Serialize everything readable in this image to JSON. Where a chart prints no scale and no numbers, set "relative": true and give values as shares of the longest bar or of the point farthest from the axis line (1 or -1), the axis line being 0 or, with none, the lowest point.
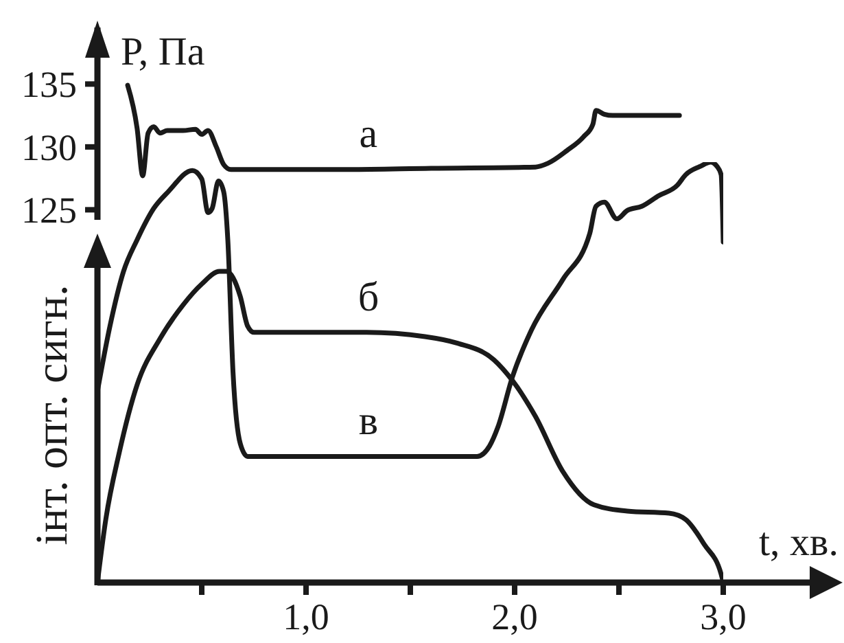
{
  "chart_data": [
    {
      "type": "line",
      "ylabel": "P, Па",
      "xlim": [
        0,
        3
      ],
      "ylim": [
        124.2,
        139.5
      ],
      "yticks": [
        125,
        130,
        135
      ],
      "tick_labels": "y",
      "series": [
        {
          "name": "а",
          "color": "#1a1a1a",
          "x": [
            0.145,
            0.19,
            0.217,
            0.243,
            0.27,
            0.3,
            0.335,
            0.41,
            0.47,
            0.5,
            0.53,
            0.57,
            0.605,
            0.64,
            1.18,
            1.6,
            2.1,
            2.16,
            2.25,
            2.33,
            2.375,
            2.39,
            2.43,
            2.47,
            2.79
          ],
          "values": [
            134.9,
            131.5,
            127.7,
            131.1,
            131.6,
            131.1,
            131.3,
            131.3,
            131.4,
            131.0,
            131.3,
            130.0,
            128.6,
            128.2,
            128.2,
            128.3,
            128.4,
            128.7,
            129.7,
            130.8,
            131.8,
            132.9,
            132.6,
            132.5,
            132.5
          ]
        }
      ]
    },
    {
      "type": "line",
      "xlabel": "t, хв.",
      "ylabel": "інт. опт. сигн.",
      "relative": true,
      "xlim": [
        0,
        3
      ],
      "xticks": [
        {
          "value": 0.5,
          "label": null
        },
        {
          "value": 1,
          "label": "1,0"
        },
        {
          "value": 1.5,
          "label": null
        },
        {
          "value": 2,
          "label": "2,0"
        },
        {
          "value": 2.5,
          "label": null
        },
        {
          "value": 3,
          "label": "3,0"
        }
      ],
      "series": [
        {
          "name": "б",
          "color": "#1a1a1a",
          "x": [
            0,
            0.04,
            0.105,
            0.19,
            0.3,
            0.41,
            0.5,
            0.585,
            0.62,
            0.65,
            0.685,
            0.72,
            0.75,
            0.85,
            1.29,
            1.57,
            1.72,
            1.9,
            1.99,
            2.1,
            2.23,
            2.38,
            2.54,
            2.74,
            2.82,
            2.91,
            2.99,
            3.0
          ],
          "values": [
            0,
            0.15,
            0.31,
            0.47,
            0.58,
            0.66,
            0.71,
            0.74,
            0.74,
            0.725,
            0.68,
            0.61,
            0.595,
            0.595,
            0.595,
            0.585,
            0.57,
            0.53,
            0.48,
            0.395,
            0.265,
            0.185,
            0.17,
            0.165,
            0.15,
            0.09,
            0.02,
            0
          ]
        },
        {
          "name": "в",
          "color": "#1a1a1a",
          "x": [
            0,
            0.06,
            0.125,
            0.19,
            0.27,
            0.34,
            0.455,
            0.5,
            0.53,
            0.55,
            0.58,
            0.605,
            0.625,
            0.65,
            0.685,
            0.72,
            0.78,
            1.51,
            1.82,
            1.88,
            1.92,
            1.99,
            2.08,
            2.23,
            2.36,
            2.39,
            2.43,
            2.49,
            2.54,
            2.61,
            2.69,
            2.78,
            2.82,
            2.89,
            2.94,
            2.97,
            2.99,
            3.0
          ],
          "values": [
            0.455,
            0.61,
            0.74,
            0.815,
            0.89,
            0.93,
            0.98,
            0.96,
            0.88,
            0.89,
            0.955,
            0.93,
            0.815,
            0.5,
            0.33,
            0.3,
            0.3,
            0.3,
            0.3,
            0.325,
            0.37,
            0.49,
            0.6,
            0.72,
            0.83,
            0.895,
            0.905,
            0.865,
            0.885,
            0.895,
            0.92,
            0.945,
            0.97,
            0.99,
            1.0,
            0.99,
            0.97,
            0.81
          ]
        }
      ]
    }
  ]
}
